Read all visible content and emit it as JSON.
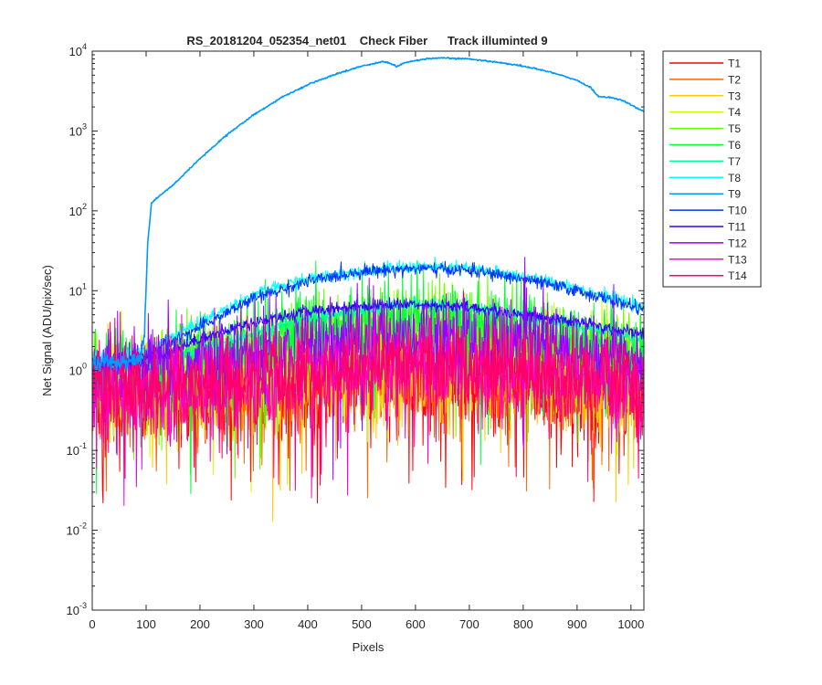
{
  "chart_data": {
    "type": "line",
    "title": "RS_20181204_052354_net01    Check Fiber      Track illuminted 9",
    "xlabel": "Pixels",
    "ylabel": "Net Signal (ADU/pix/sec)",
    "xlim": [
      0,
      1024
    ],
    "ylim": [
      0.001,
      10000
    ],
    "yscale": "log",
    "xticks": [
      0,
      100,
      200,
      300,
      400,
      500,
      600,
      700,
      800,
      900,
      1000
    ],
    "yticks": [
      {
        "value": 0.001,
        "base": "10",
        "exp": "-3"
      },
      {
        "value": 0.01,
        "base": "10",
        "exp": "-2"
      },
      {
        "value": 0.1,
        "base": "10",
        "exp": "-1"
      },
      {
        "value": 1,
        "base": "10",
        "exp": "0"
      },
      {
        "value": 10,
        "base": "10",
        "exp": "1"
      },
      {
        "value": 100,
        "base": "10",
        "exp": "2"
      },
      {
        "value": 1000,
        "base": "10",
        "exp": "3"
      },
      {
        "value": 10000,
        "base": "10",
        "exp": "4"
      }
    ],
    "grid": false,
    "legend_position": "outside-right",
    "series": [
      {
        "name": "T1",
        "color": "#ff0000",
        "profile": [
          [
            0,
            0.45
          ],
          [
            200,
            0.5
          ],
          [
            400,
            0.6
          ],
          [
            600,
            0.75
          ],
          [
            800,
            0.6
          ],
          [
            1024,
            0.5
          ]
        ]
      },
      {
        "name": "T2",
        "color": "#ff6600",
        "profile": [
          [
            0,
            0.45
          ],
          [
            200,
            0.5
          ],
          [
            400,
            0.65
          ],
          [
            600,
            0.8
          ],
          [
            800,
            0.65
          ],
          [
            1024,
            0.5
          ]
        ]
      },
      {
        "name": "T3",
        "color": "#ffcc00",
        "profile": [
          [
            0,
            0.5
          ],
          [
            200,
            0.55
          ],
          [
            400,
            0.7
          ],
          [
            600,
            0.85
          ],
          [
            800,
            0.7
          ],
          [
            1024,
            0.55
          ]
        ]
      },
      {
        "name": "T4",
        "color": "#ccff00",
        "profile": [
          [
            0,
            0.6
          ],
          [
            200,
            0.8
          ],
          [
            400,
            1.5
          ],
          [
            600,
            2.5
          ],
          [
            800,
            1.8
          ],
          [
            1024,
            1.0
          ]
        ]
      },
      {
        "name": "T5",
        "color": "#66ff00",
        "profile": [
          [
            0,
            0.7
          ],
          [
            200,
            1.0
          ],
          [
            400,
            2.2
          ],
          [
            600,
            3.5
          ],
          [
            800,
            2.5
          ],
          [
            1024,
            1.3
          ]
        ]
      },
      {
        "name": "T6",
        "color": "#00ff33",
        "profile": [
          [
            0,
            0.8
          ],
          [
            200,
            1.3
          ],
          [
            400,
            3.0
          ],
          [
            600,
            4.0
          ],
          [
            800,
            3.0
          ],
          [
            1024,
            1.5
          ]
        ]
      },
      {
        "name": "T7",
        "color": "#00ff99",
        "profile": [
          [
            0,
            0.9
          ],
          [
            200,
            1.8
          ],
          [
            400,
            4.5
          ],
          [
            600,
            7.0
          ],
          [
            800,
            5.0
          ],
          [
            1024,
            2.5
          ]
        ]
      },
      {
        "name": "T8",
        "color": "#00ffff",
        "profile": [
          [
            0,
            1.4
          ],
          [
            100,
            1.8
          ],
          [
            200,
            4.0
          ],
          [
            300,
            9.0
          ],
          [
            400,
            14
          ],
          [
            500,
            18
          ],
          [
            600,
            20
          ],
          [
            700,
            19
          ],
          [
            800,
            15
          ],
          [
            900,
            11
          ],
          [
            1024,
            6
          ]
        ]
      },
      {
        "name": "T9",
        "color": "#0099ff",
        "profile": [
          [
            0,
            1.2
          ],
          [
            90,
            1.4
          ],
          [
            97,
            3
          ],
          [
            103,
            40
          ],
          [
            110,
            125
          ],
          [
            120,
            145
          ],
          [
            150,
            210
          ],
          [
            200,
            450
          ],
          [
            250,
            900
          ],
          [
            300,
            1600
          ],
          [
            350,
            2600
          ],
          [
            400,
            3800
          ],
          [
            450,
            5100
          ],
          [
            500,
            6500
          ],
          [
            540,
            7400
          ],
          [
            555,
            7000
          ],
          [
            565,
            6400
          ],
          [
            580,
            7200
          ],
          [
            620,
            8000
          ],
          [
            650,
            8200
          ],
          [
            700,
            8000
          ],
          [
            750,
            7300
          ],
          [
            800,
            6500
          ],
          [
            850,
            5500
          ],
          [
            900,
            4300
          ],
          [
            925,
            3500
          ],
          [
            940,
            2700
          ],
          [
            960,
            2650
          ],
          [
            985,
            2400
          ],
          [
            1024,
            1750
          ]
        ]
      },
      {
        "name": "T10",
        "color": "#0033ff",
        "profile": [
          [
            0,
            1.2
          ],
          [
            100,
            1.6
          ],
          [
            200,
            3.5
          ],
          [
            300,
            8.0
          ],
          [
            400,
            13
          ],
          [
            500,
            17.5
          ],
          [
            600,
            19
          ],
          [
            700,
            18
          ],
          [
            800,
            14
          ],
          [
            900,
            10
          ],
          [
            1024,
            5.8
          ]
        ]
      },
      {
        "name": "T11",
        "color": "#3300ff",
        "profile": [
          [
            0,
            1.0
          ],
          [
            100,
            1.3
          ],
          [
            200,
            2.5
          ],
          [
            300,
            4.0
          ],
          [
            400,
            5.5
          ],
          [
            500,
            6.5
          ],
          [
            600,
            6.8
          ],
          [
            700,
            6.2
          ],
          [
            800,
            5.0
          ],
          [
            900,
            4.0
          ],
          [
            1024,
            2.8
          ]
        ]
      },
      {
        "name": "T12",
        "color": "#9900ff",
        "profile": [
          [
            0,
            0.8
          ],
          [
            200,
            1.1
          ],
          [
            400,
            2.0
          ],
          [
            600,
            2.8
          ],
          [
            800,
            2.2
          ],
          [
            1024,
            1.2
          ]
        ]
      },
      {
        "name": "T13",
        "color": "#ff00cc",
        "profile": [
          [
            0,
            0.5
          ],
          [
            200,
            0.6
          ],
          [
            400,
            0.9
          ],
          [
            600,
            1.1
          ],
          [
            800,
            0.9
          ],
          [
            1024,
            0.6
          ]
        ]
      },
      {
        "name": "T14",
        "color": "#ff0066",
        "profile": [
          [
            0,
            0.55
          ],
          [
            200,
            0.65
          ],
          [
            400,
            0.95
          ],
          [
            600,
            1.2
          ],
          [
            800,
            0.95
          ],
          [
            1024,
            0.65
          ]
        ]
      }
    ]
  }
}
